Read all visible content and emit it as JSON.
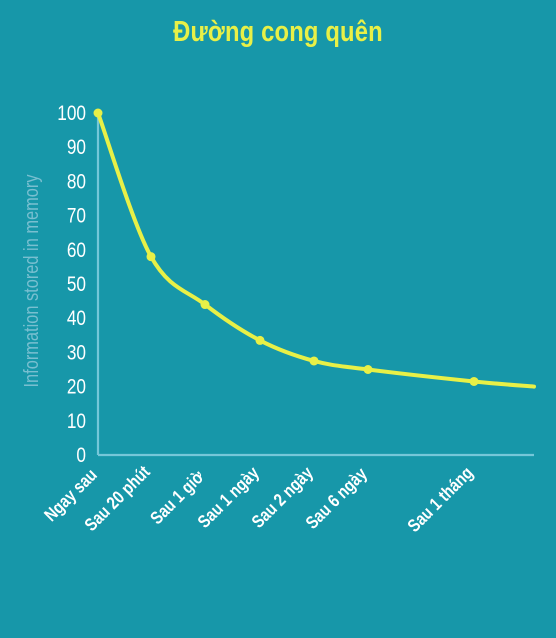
{
  "chart_data": {
    "type": "line",
    "title": "Đường cong quên",
    "xlabel": "",
    "ylabel": "Information stored in memory",
    "categories": [
      "Ngay sau",
      "Sau 20 phút",
      "Sau 1 giờ",
      "Sau 1 ngày",
      "Sau 2 ngày",
      "Sau 6 ngày",
      "Sau 1 tháng"
    ],
    "yticks": [
      "0",
      "10",
      "20",
      "30",
      "40",
      "50",
      "60",
      "70",
      "80",
      "90",
      "100"
    ],
    "ylim": [
      0,
      100
    ],
    "grid": false,
    "series": [
      {
        "values": [
          100,
          58,
          44,
          33.5,
          27.5,
          25,
          21.5
        ]
      }
    ],
    "trailing_value": 20
  },
  "colors": {
    "background": "#1797a9",
    "line": "#e8f047",
    "axis": "#75c7d9",
    "tick_text": "#ffffff",
    "ylabel": "#78bfd0"
  }
}
